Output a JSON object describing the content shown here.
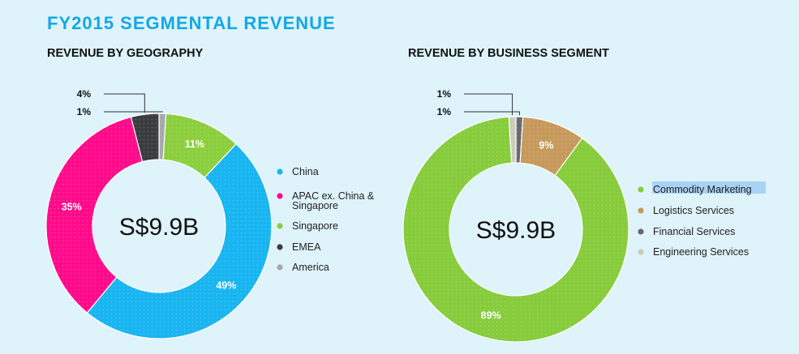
{
  "page_title": "FY2015 SEGMENTAL REVENUE",
  "chart_data": [
    {
      "type": "pie",
      "title": "REVENUE BY GEOGRAPHY",
      "center_label": "S$9.9B",
      "categories": [
        "China",
        "APAC ex. China & Singapore",
        "Singapore",
        "EMEA",
        "America"
      ],
      "legend_lines": [
        [
          "China"
        ],
        [
          "APAC ex. China &",
          "Singapore"
        ],
        [
          "Singapore"
        ],
        [
          "EMEA"
        ],
        [
          "America"
        ]
      ],
      "values": [
        49,
        35,
        11,
        4,
        1
      ],
      "value_labels": [
        "49%",
        "35%",
        "11%",
        "4%",
        "1%"
      ],
      "colors": [
        "#19b5f0",
        "#ff0b8a",
        "#8ccf3e",
        "#3b3c40",
        "#a5a9ab"
      ],
      "slice_order": [
        4,
        2,
        0,
        1,
        3
      ],
      "legend_placement": "right"
    },
    {
      "type": "pie",
      "title": "REVENUE BY BUSINESS SEGMENT",
      "center_label": "S$9.9B",
      "categories": [
        "Commodity Marketing",
        "Logistics Services",
        "Financial Services",
        "Engineering Services"
      ],
      "legend_lines": [
        [
          "Commodity Marketing"
        ],
        [
          "Logistics Services"
        ],
        [
          "Financial Services"
        ],
        [
          "Engineering Services"
        ]
      ],
      "values": [
        89,
        9,
        1,
        1
      ],
      "value_labels": [
        "89%",
        "9%",
        "1%",
        "1%"
      ],
      "colors": [
        "#86cc3b",
        "#c69a5c",
        "#67696d",
        "#c9ccb9"
      ],
      "slice_order": [
        2,
        1,
        0,
        3
      ],
      "legend_placement": "right",
      "highlighted_legend_item": "Commodity Marketing"
    }
  ]
}
